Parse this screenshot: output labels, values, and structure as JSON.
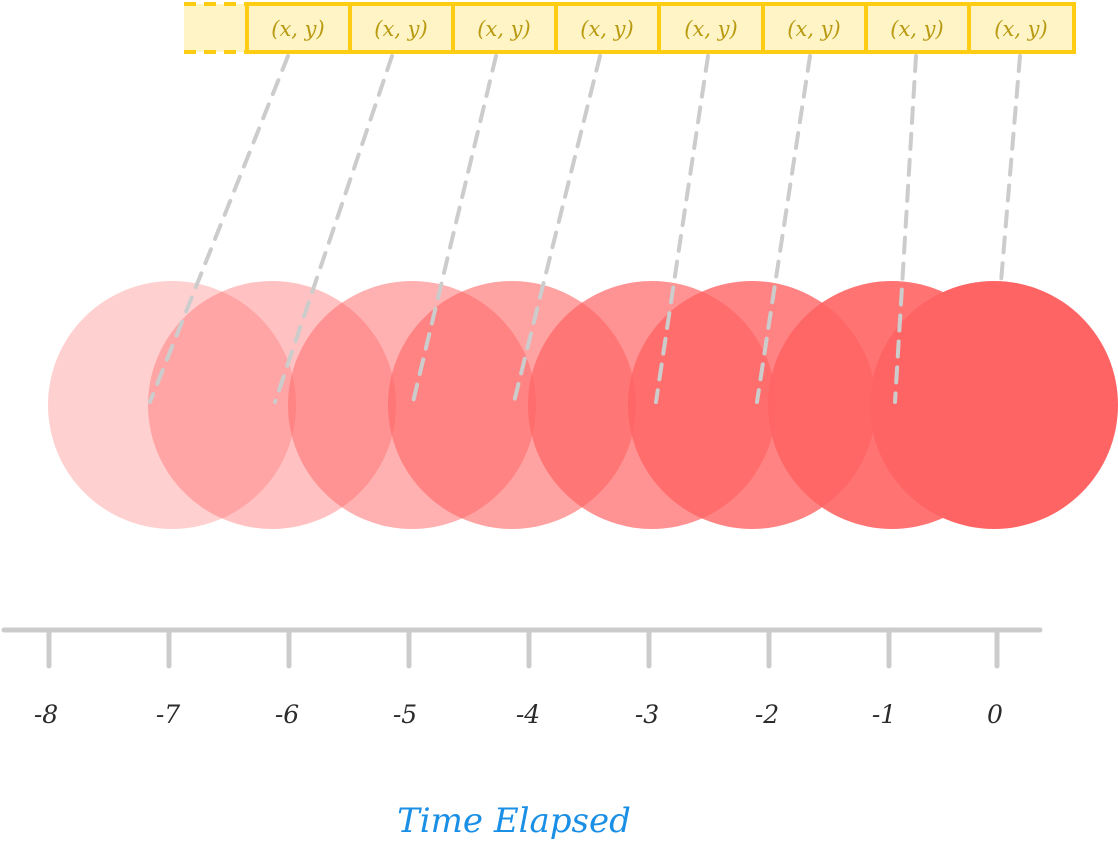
{
  "buffer": {
    "cell_labels": [
      "(x, y)",
      "(x, y)",
      "(x, y)",
      "(x, y)",
      "(x, y)",
      "(x, y)",
      "(x, y)",
      "(x, y)"
    ]
  },
  "timeline": {
    "ticks": [
      "-8",
      "-7",
      "-6",
      "-5",
      "-4",
      "-3",
      "-2",
      "-1",
      "0"
    ],
    "axis_title": "Time Elapsed"
  },
  "colors": {
    "buffer_fill": "#fff4c6",
    "buffer_stroke": "#ffcc14",
    "buffer_text": "#b99a12",
    "circle": "#ff6464",
    "connector": "#cccccc",
    "axis": "#cccccc",
    "axis_title": "#1a8fe6"
  },
  "circles": {
    "opacity": [
      0.3,
      0.4,
      0.5,
      0.6,
      0.7,
      0.8,
      0.9,
      1.0
    ]
  }
}
